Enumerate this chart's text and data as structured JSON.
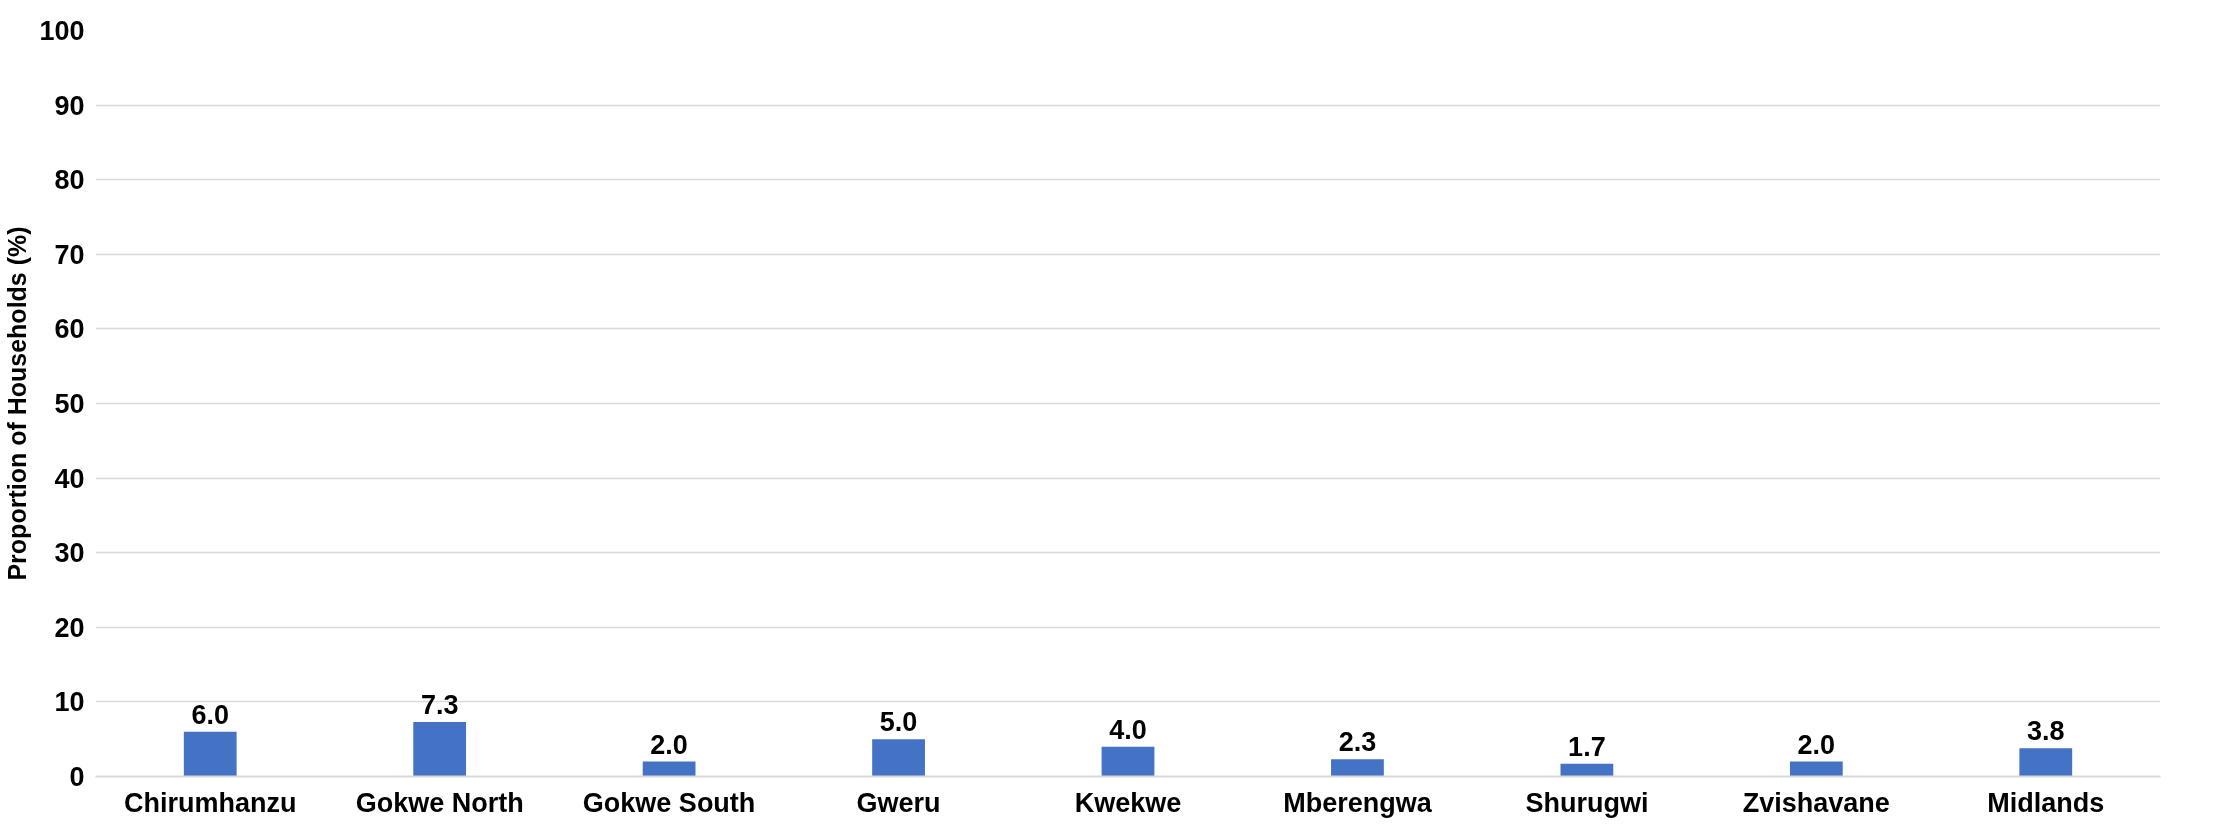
{
  "chart_data": {
    "type": "bar",
    "ylabel": "Proportion of Households (%)",
    "categories": [
      "Chirumhanzu",
      "Gokwe North",
      "Gokwe South",
      "Gweru",
      "Kwekwe",
      "Mberengwa",
      "Shurugwi",
      "Zvishavane",
      "Midlands"
    ],
    "values": [
      6.0,
      7.3,
      2.0,
      5.0,
      4.0,
      2.3,
      1.7,
      2.0,
      3.8
    ],
    "color": "#4472c4",
    "ylim": [
      0,
      100
    ],
    "yticks": [
      0,
      10,
      20,
      30,
      40,
      50,
      60,
      70,
      80,
      90,
      100
    ],
    "value_labels": [
      "6.0",
      "7.3",
      "2.0",
      "5.0",
      "4.0",
      "2.3",
      "1.7",
      "2.0",
      "3.8"
    ],
    "grid": "y"
  }
}
